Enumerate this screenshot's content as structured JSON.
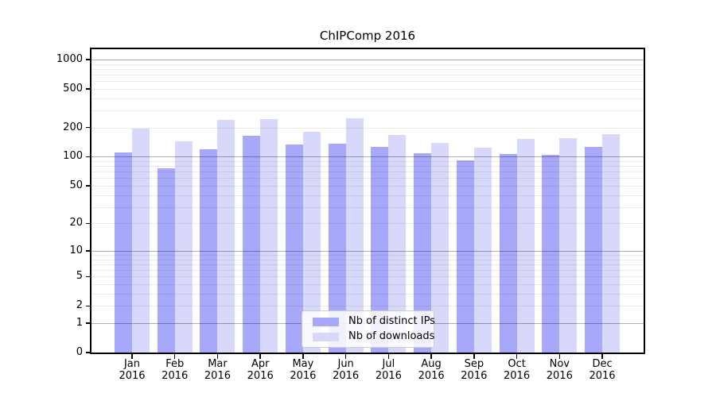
{
  "title": "ChIPComp 2016",
  "colors": {
    "ips_bar": "#a8a8fa",
    "downloads_bar": "#d8d8fa",
    "grid_major": "rgba(0,0,0,0.32)",
    "grid_minor": "rgba(0,0,0,0.08)"
  },
  "legend": {
    "items": [
      {
        "label": "Nb of distinct IPs",
        "series": "ips"
      },
      {
        "label": "Nb of downloads",
        "series": "downloads"
      }
    ]
  },
  "x_axis": {
    "months": [
      "Jan",
      "Feb",
      "Mar",
      "Apr",
      "May",
      "Jun",
      "Jul",
      "Aug",
      "Sep",
      "Oct",
      "Nov",
      "Dec"
    ],
    "year": "2016"
  },
  "y_axis": {
    "tick_labels": [
      "0",
      "1",
      "2",
      "5",
      "10",
      "20",
      "50",
      "100",
      "200",
      "500",
      "1000"
    ],
    "tick_values": [
      0,
      1,
      2,
      5,
      10,
      20,
      50,
      100,
      200,
      500,
      1000
    ]
  },
  "chart_data": {
    "type": "bar",
    "title": "ChIPComp 2016",
    "categories": [
      "Jan 2016",
      "Feb 2016",
      "Mar 2016",
      "Apr 2016",
      "May 2016",
      "Jun 2016",
      "Jul 2016",
      "Aug 2016",
      "Sep 2016",
      "Oct 2016",
      "Nov 2016",
      "Dec 2016"
    ],
    "series": [
      {
        "name": "Nb of distinct IPs",
        "values": [
          110,
          76,
          120,
          165,
          135,
          136,
          126,
          108,
          91,
          107,
          105,
          127
        ]
      },
      {
        "name": "Nb of downloads",
        "values": [
          197,
          145,
          238,
          244,
          182,
          247,
          167,
          138,
          125,
          152,
          157,
          170
        ]
      }
    ],
    "xlabel": "",
    "ylabel": "",
    "yscale": "log1p",
    "yticks": [
      0,
      1,
      2,
      5,
      10,
      20,
      50,
      100,
      200,
      500,
      1000
    ],
    "ylim": [
      0,
      1300
    ],
    "grid": true,
    "legend_position": "lower center"
  }
}
